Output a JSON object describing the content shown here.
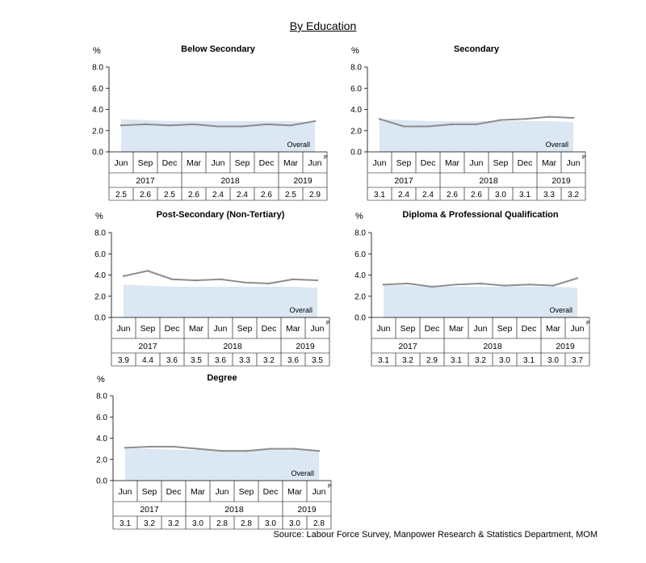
{
  "title": "By Education",
  "source": "Source: Labour Force Survey, Manpower Research & Statistics Department, MOM",
  "colors": {
    "overall_fill": "#dbe7f3",
    "line": "#8c8c8c",
    "grid": "#000000"
  },
  "chart_data": [
    {
      "type": "line",
      "title": "Below Secondary",
      "ylabel": "%",
      "ylim": [
        0,
        8
      ],
      "yticks": [
        "0.0",
        "2.0",
        "4.0",
        "6.0",
        "8.0"
      ],
      "categories": [
        "Jun",
        "Sep",
        "Dec",
        "Mar",
        "Jun",
        "Sep",
        "Dec",
        "Mar",
        "Jun"
      ],
      "year_groups": [
        {
          "label": "2017",
          "span": 3
        },
        {
          "label": "2018",
          "span": 4
        },
        {
          "label": "2019",
          "span": 2
        }
      ],
      "preliminary_marker": "P",
      "series": [
        {
          "values": [
            2.5,
            2.6,
            2.5,
            2.6,
            2.4,
            2.4,
            2.6,
            2.5,
            2.9
          ]
        }
      ],
      "overall": {
        "name": "Overall",
        "values": [
          3.1,
          3.0,
          2.9,
          2.9,
          2.9,
          2.9,
          2.9,
          2.9,
          2.8
        ]
      },
      "table_values": [
        "2.5",
        "2.6",
        "2.5",
        "2.6",
        "2.4",
        "2.4",
        "2.6",
        "2.5",
        "2.9"
      ]
    },
    {
      "type": "line",
      "title": "Secondary",
      "ylabel": "%",
      "ylim": [
        0,
        8
      ],
      "yticks": [
        "0.0",
        "2.0",
        "4.0",
        "6.0",
        "8.0"
      ],
      "categories": [
        "Jun",
        "Sep",
        "Dec",
        "Mar",
        "Jun",
        "Sep",
        "Dec",
        "Mar",
        "Jun"
      ],
      "year_groups": [
        {
          "label": "2017",
          "span": 3
        },
        {
          "label": "2018",
          "span": 4
        },
        {
          "label": "2019",
          "span": 2
        }
      ],
      "preliminary_marker": "P",
      "series": [
        {
          "values": [
            3.1,
            2.4,
            2.4,
            2.6,
            2.6,
            3.0,
            3.1,
            3.3,
            3.2
          ]
        }
      ],
      "overall": {
        "name": "Overall",
        "values": [
          3.1,
          3.0,
          2.9,
          2.9,
          2.9,
          2.9,
          2.9,
          2.9,
          2.8
        ]
      },
      "table_values": [
        "3.1",
        "2.4",
        "2.4",
        "2.6",
        "2.6",
        "3.0",
        "3.1",
        "3.3",
        "3.2"
      ]
    },
    {
      "type": "line",
      "title": "Post-Secondary (Non-Tertiary)",
      "ylabel": "%",
      "ylim": [
        0,
        8
      ],
      "yticks": [
        "0.0",
        "2.0",
        "4.0",
        "6.0",
        "8.0"
      ],
      "categories": [
        "Jun",
        "Sep",
        "Dec",
        "Mar",
        "Jun",
        "Sep",
        "Dec",
        "Mar",
        "Jun"
      ],
      "year_groups": [
        {
          "label": "2017",
          "span": 3
        },
        {
          "label": "2018",
          "span": 4
        },
        {
          "label": "2019",
          "span": 2
        }
      ],
      "preliminary_marker": "P",
      "series": [
        {
          "values": [
            3.9,
            4.4,
            3.6,
            3.5,
            3.6,
            3.3,
            3.2,
            3.6,
            3.5
          ]
        }
      ],
      "overall": {
        "name": "Overall",
        "values": [
          3.1,
          3.0,
          2.9,
          2.9,
          2.9,
          2.9,
          2.9,
          2.9,
          2.8
        ]
      },
      "table_values": [
        "3.9",
        "4.4",
        "3.6",
        "3.5",
        "3.6",
        "3.3",
        "3.2",
        "3.6",
        "3.5"
      ]
    },
    {
      "type": "line",
      "title": "Diploma & Professional Qualification",
      "ylabel": "%",
      "ylim": [
        0,
        8
      ],
      "yticks": [
        "0.0",
        "2.0",
        "4.0",
        "6.0",
        "8.0"
      ],
      "categories": [
        "Jun",
        "Sep",
        "Dec",
        "Mar",
        "Jun",
        "Sep",
        "Dec",
        "Mar",
        "Jun"
      ],
      "year_groups": [
        {
          "label": "2017",
          "span": 3
        },
        {
          "label": "2018",
          "span": 4
        },
        {
          "label": "2019",
          "span": 2
        }
      ],
      "preliminary_marker": "P",
      "series": [
        {
          "values": [
            3.1,
            3.2,
            2.9,
            3.1,
            3.2,
            3.0,
            3.1,
            3.0,
            3.7
          ]
        }
      ],
      "overall": {
        "name": "Overall",
        "values": [
          3.1,
          3.0,
          2.9,
          2.9,
          2.9,
          2.9,
          2.9,
          2.9,
          2.8
        ]
      },
      "table_values": [
        "3.1",
        "3.2",
        "2.9",
        "3.1",
        "3.2",
        "3.0",
        "3.1",
        "3.0",
        "3.7"
      ]
    },
    {
      "type": "line",
      "title": "Degree",
      "ylabel": "%",
      "ylim": [
        0,
        8
      ],
      "yticks": [
        "0.0",
        "2.0",
        "4.0",
        "6.0",
        "8.0"
      ],
      "categories": [
        "Jun",
        "Sep",
        "Dec",
        "Mar",
        "Jun",
        "Sep",
        "Dec",
        "Mar",
        "Jun"
      ],
      "year_groups": [
        {
          "label": "2017",
          "span": 3
        },
        {
          "label": "2018",
          "span": 4
        },
        {
          "label": "2019",
          "span": 2
        }
      ],
      "preliminary_marker": "P",
      "series": [
        {
          "values": [
            3.1,
            3.2,
            3.2,
            3.0,
            2.8,
            2.8,
            3.0,
            3.0,
            2.8
          ]
        }
      ],
      "overall": {
        "name": "Overall",
        "values": [
          3.1,
          3.0,
          2.9,
          2.9,
          2.9,
          2.9,
          2.9,
          2.9,
          2.8
        ]
      },
      "table_values": [
        "3.1",
        "3.2",
        "3.2",
        "3.0",
        "2.8",
        "2.8",
        "3.0",
        "3.0",
        "2.8"
      ]
    }
  ]
}
